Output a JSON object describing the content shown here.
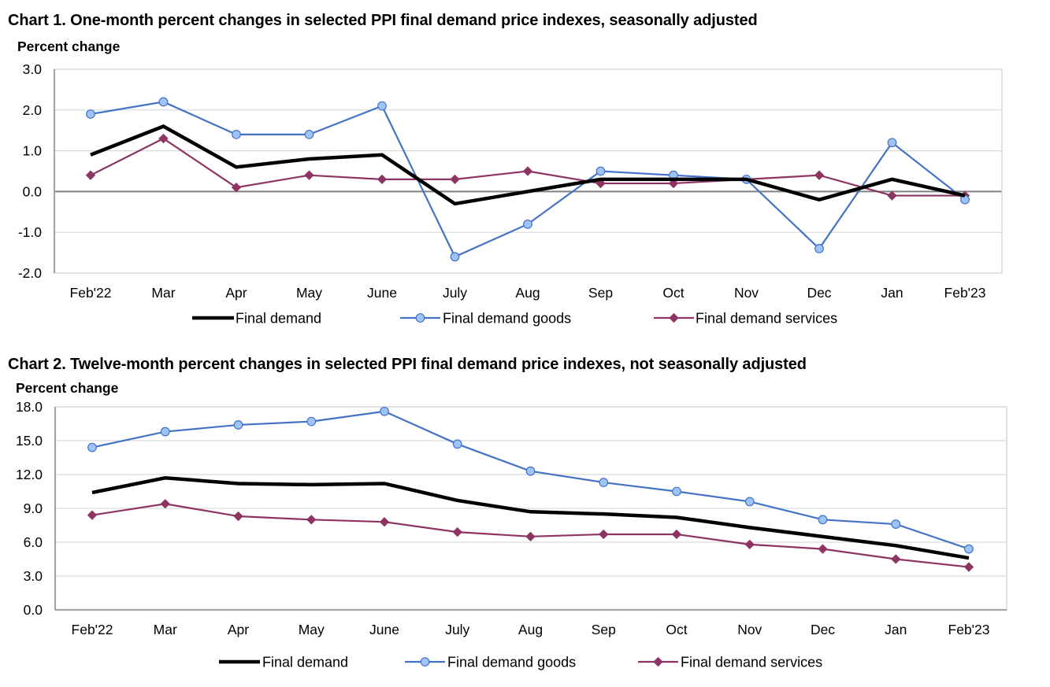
{
  "colors": {
    "final_demand": "#000000",
    "goods_line": "#4472C4",
    "goods_marker_fill": "#9DC3F7",
    "services": "#8E3463",
    "grid": "#D9D9D9",
    "frame": "#A6A6A6",
    "zero_line": "#808080"
  },
  "chart_data": [
    {
      "type": "line",
      "title": "Chart 1. One-month percent changes in selected PPI final demand price indexes, seasonally adjusted",
      "xlabel": "",
      "ylabel": "Percent change",
      "ylim": [
        -2.0,
        3.0
      ],
      "yticks": [
        "3.0",
        "2.0",
        "1.0",
        "0.0",
        "-1.0",
        "-2.0"
      ],
      "ytick_values": [
        3,
        2,
        1,
        0,
        -1,
        -2
      ],
      "grid": true,
      "legend_position": "bottom",
      "categories": [
        "Feb'22",
        "Mar",
        "Apr",
        "May",
        "June",
        "July",
        "Aug",
        "Sep",
        "Oct",
        "Nov",
        "Dec",
        "Jan",
        "Feb'23"
      ],
      "series": [
        {
          "name": "Final demand",
          "key": "final_demand",
          "marker": "none",
          "values": [
            0.9,
            1.6,
            0.6,
            0.8,
            0.9,
            -0.3,
            0.0,
            0.3,
            0.3,
            0.3,
            -0.2,
            0.3,
            -0.1
          ]
        },
        {
          "name": "Final demand goods",
          "key": "goods",
          "marker": "circle",
          "values": [
            1.9,
            2.2,
            1.4,
            1.4,
            2.1,
            -1.6,
            -0.8,
            0.5,
            0.4,
            0.3,
            -1.4,
            1.2,
            -0.2
          ]
        },
        {
          "name": "Final demand services",
          "key": "services",
          "marker": "diamond",
          "values": [
            0.4,
            1.3,
            0.1,
            0.4,
            0.3,
            0.3,
            0.5,
            0.2,
            0.2,
            0.3,
            0.4,
            -0.1,
            -0.1
          ]
        }
      ]
    },
    {
      "type": "line",
      "title": "Chart 2. Twelve-month percent changes in selected PPI final demand price indexes, not seasonally adjusted",
      "xlabel": "",
      "ylabel": "Percent change",
      "ylim": [
        0.0,
        18.0
      ],
      "yticks": [
        "18.0",
        "15.0",
        "12.0",
        "9.0",
        "6.0",
        "3.0",
        "0.0"
      ],
      "ytick_values": [
        18,
        15,
        12,
        9,
        6,
        3,
        0
      ],
      "grid": true,
      "legend_position": "bottom",
      "categories": [
        "Feb'22",
        "Mar",
        "Apr",
        "May",
        "June",
        "July",
        "Aug",
        "Sep",
        "Oct",
        "Nov",
        "Dec",
        "Jan",
        "Feb'23"
      ],
      "series": [
        {
          "name": "Final demand",
          "key": "final_demand",
          "marker": "none",
          "values": [
            10.4,
            11.7,
            11.2,
            11.1,
            11.2,
            9.7,
            8.7,
            8.5,
            8.2,
            7.3,
            6.5,
            5.7,
            4.6
          ]
        },
        {
          "name": "Final demand goods",
          "key": "goods",
          "marker": "circle",
          "values": [
            14.4,
            15.8,
            16.4,
            16.7,
            17.6,
            14.7,
            12.3,
            11.3,
            10.5,
            9.6,
            8.0,
            7.6,
            5.4
          ]
        },
        {
          "name": "Final demand services",
          "key": "services",
          "marker": "diamond",
          "values": [
            8.4,
            9.4,
            8.3,
            8.0,
            7.8,
            6.9,
            6.5,
            6.7,
            6.7,
            5.8,
            5.4,
            4.5,
            3.8
          ]
        }
      ]
    }
  ]
}
